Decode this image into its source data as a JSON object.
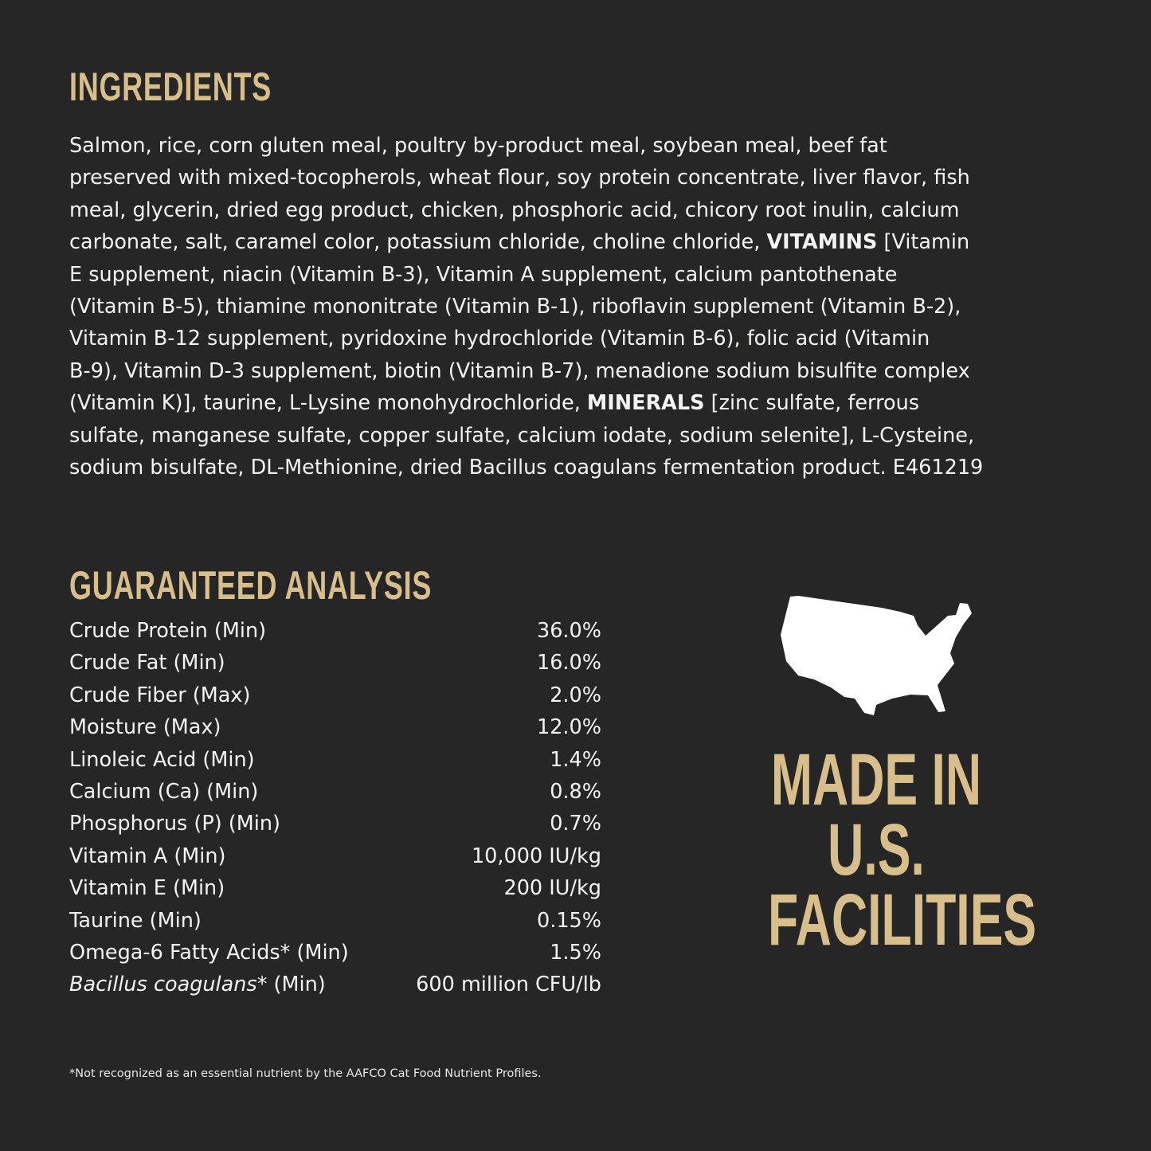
{
  "ingredients": {
    "title": "INGREDIENTS",
    "lines": [
      [
        {
          "text": "Salmon, rice, corn gluten meal, poultry by-product meal, soybean meal, beef fat",
          "bold": false
        }
      ],
      [
        {
          "text": "preserved with mixed-tocopherols, wheat flour, soy protein concentrate, liver flavor, fish",
          "bold": false
        }
      ],
      [
        {
          "text": "meal, glycerin, dried egg product, chicken, phosphoric acid, chicory root inulin, calcium",
          "bold": false
        }
      ],
      [
        {
          "text": "carbonate, salt, caramel color, potassium chloride, choline chloride, ",
          "bold": false
        },
        {
          "text": "VITAMINS",
          "bold": true
        },
        {
          "text": " [Vitamin",
          "bold": false
        }
      ],
      [
        {
          "text": "E supplement, niacin (Vitamin B-3), Vitamin A supplement, calcium pantothenate",
          "bold": false
        }
      ],
      [
        {
          "text": "(Vitamin B-5), thiamine mononitrate (Vitamin B-1), riboflavin supplement (Vitamin B-2),",
          "bold": false
        }
      ],
      [
        {
          "text": "Vitamin B-12 supplement, pyridoxine hydrochloride (Vitamin B-6), folic acid (Vitamin",
          "bold": false
        }
      ],
      [
        {
          "text": "B-9), Vitamin D-3 supplement, biotin (Vitamin B-7), menadione sodium bisulfite complex",
          "bold": false
        }
      ],
      [
        {
          "text": "(Vitamin K)], taurine, L-Lysine monohydrochloride, ",
          "bold": false
        },
        {
          "text": "MINERALS",
          "bold": true
        },
        {
          "text": " [zinc sulfate, ferrous",
          "bold": false
        }
      ],
      [
        {
          "text": "sulfate, manganese sulfate, copper sulfate, calcium iodate, sodium selenite], L-Cysteine,",
          "bold": false
        }
      ],
      [
        {
          "text": "sodium bisulfate, DL-Methionine, dried Bacillus coagulans fermentation product. E461219",
          "bold": false
        }
      ]
    ]
  },
  "analysis": {
    "title": "GUARANTEED ANALYSIS",
    "rows": [
      {
        "label": "Crude Protein (Min)",
        "value": "36.0%"
      },
      {
        "label": "Crude Fat (Min)",
        "value": "16.0%"
      },
      {
        "label": "Crude Fiber (Max)",
        "value": "2.0%"
      },
      {
        "label": "Moisture (Max)",
        "value": "12.0%"
      },
      {
        "label": "Linoleic Acid (Min)",
        "value": "1.4%"
      },
      {
        "label": "Calcium (Ca) (Min)",
        "value": "0.8%"
      },
      {
        "label": "Phosphorus (P) (Min)",
        "value": "0.7%"
      },
      {
        "label": "Vitamin A (Min)",
        "value": "10,000 IU/kg"
      },
      {
        "label": "Vitamin E (Min)",
        "value": "200 IU/kg"
      },
      {
        "label": "Taurine (Min)",
        "value": "0.15%"
      },
      {
        "label": "Omega-6 Fatty Acids* (Min)",
        "value": "1.5%"
      },
      {
        "label": "Bacillus coagulans",
        "label_suffix": "* (Min)",
        "italic": true,
        "value": "600 million CFU/lb"
      }
    ]
  },
  "made_in": {
    "icon": "usa-map-icon",
    "lines": [
      "MADE IN",
      "U.S.",
      "FACILITIES"
    ]
  },
  "footnote": "*Not recognized as an essential nutrient by the AAFCO Cat Food Nutrient Profiles.",
  "colors": {
    "background": "#262626",
    "accent": "#d8be8a",
    "text": "#f4f4f2"
  }
}
